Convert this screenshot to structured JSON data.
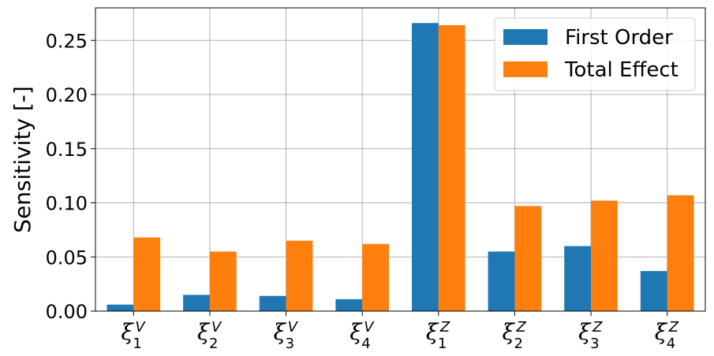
{
  "chart_data": {
    "type": "bar",
    "categories": [
      {
        "symbol": "ξ",
        "superscript": "V",
        "subscript": "1"
      },
      {
        "symbol": "ξ",
        "superscript": "V",
        "subscript": "2"
      },
      {
        "symbol": "ξ",
        "superscript": "V",
        "subscript": "3"
      },
      {
        "symbol": "ξ",
        "superscript": "V",
        "subscript": "4"
      },
      {
        "symbol": "ξ",
        "superscript": "Z",
        "subscript": "1"
      },
      {
        "symbol": "ξ",
        "superscript": "Z",
        "subscript": "2"
      },
      {
        "symbol": "ξ",
        "superscript": "Z",
        "subscript": "3"
      },
      {
        "symbol": "ξ",
        "superscript": "Z",
        "subscript": "4"
      }
    ],
    "series": [
      {
        "name": "First Order",
        "color": "#1f77b4",
        "values": [
          0.006,
          0.015,
          0.014,
          0.011,
          0.266,
          0.055,
          0.06,
          0.037
        ]
      },
      {
        "name": "Total Effect",
        "color": "#ff7f0e",
        "values": [
          0.068,
          0.055,
          0.065,
          0.062,
          0.264,
          0.097,
          0.102,
          0.107
        ]
      }
    ],
    "title": "",
    "xlabel": "",
    "ylabel": "Sensitivity [-]",
    "ylim": [
      0,
      0.28
    ],
    "yticks": [
      "0.00",
      "0.05",
      "0.10",
      "0.15",
      "0.20",
      "0.25"
    ],
    "grid": true,
    "legend_position": "upper-right"
  }
}
